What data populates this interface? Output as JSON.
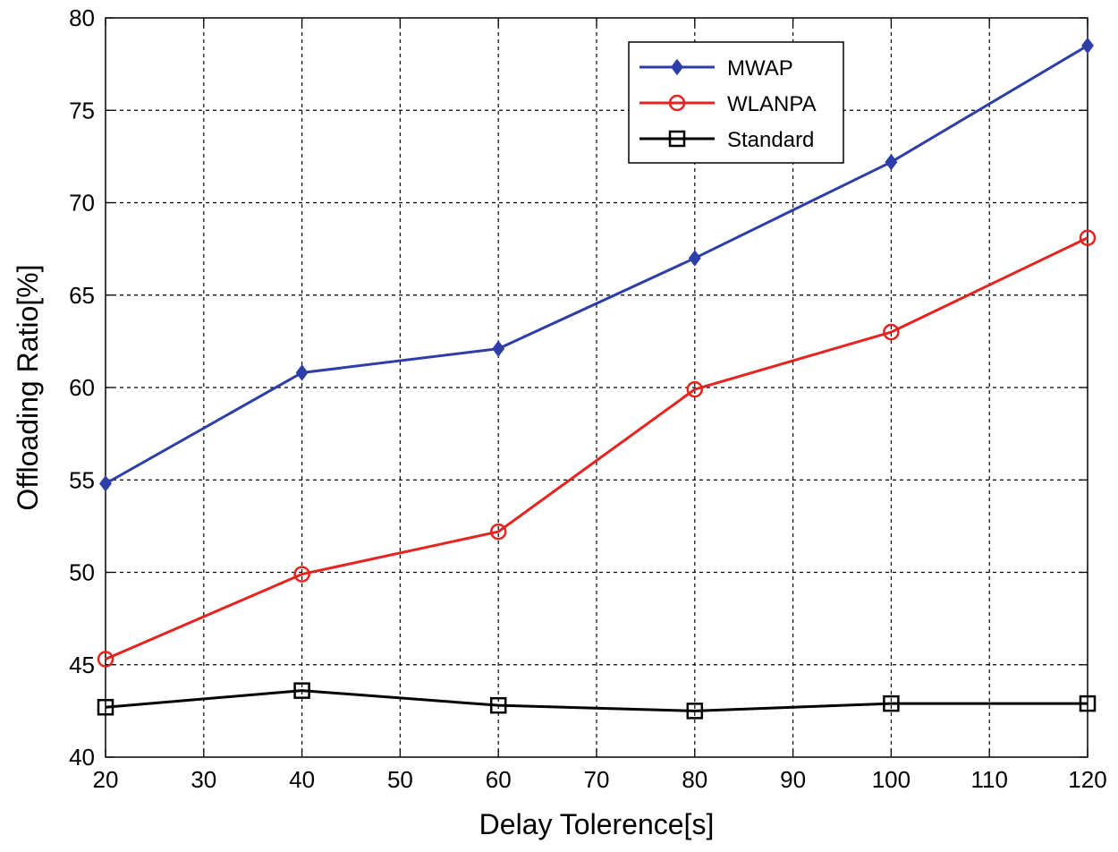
{
  "chart_data": {
    "type": "line",
    "title": "",
    "xlabel": "Delay Tolerence[s]",
    "ylabel": "Offloading Ratio[%]",
    "xlim": [
      20,
      120
    ],
    "ylim": [
      40,
      80
    ],
    "xticks": [
      20,
      30,
      40,
      50,
      60,
      70,
      80,
      90,
      100,
      110,
      120
    ],
    "yticks": [
      40,
      45,
      50,
      55,
      60,
      65,
      70,
      75,
      80
    ],
    "x_tick_labels": [
      "20",
      "30",
      "40",
      "50",
      "60",
      "70",
      "80",
      "90",
      "100",
      "110",
      "120"
    ],
    "y_tick_labels": [
      "40",
      "45",
      "50",
      "55",
      "60",
      "65",
      "70",
      "75",
      "80"
    ],
    "grid": true,
    "legend_position": "top-right",
    "x": [
      20,
      40,
      60,
      80,
      100,
      120
    ],
    "series": [
      {
        "name": "MWAP",
        "color": "#2e3ea8",
        "marker": "diamond",
        "values": [
          54.8,
          60.8,
          62.1,
          67.0,
          72.2,
          78.5
        ]
      },
      {
        "name": "WLANPA",
        "color": "#e8231f",
        "marker": "circle",
        "values": [
          45.3,
          49.9,
          52.2,
          59.9,
          63.0,
          68.1
        ]
      },
      {
        "name": "Standard",
        "color": "#000000",
        "marker": "square",
        "values": [
          42.7,
          43.6,
          42.8,
          42.5,
          42.9,
          42.9
        ]
      }
    ]
  }
}
